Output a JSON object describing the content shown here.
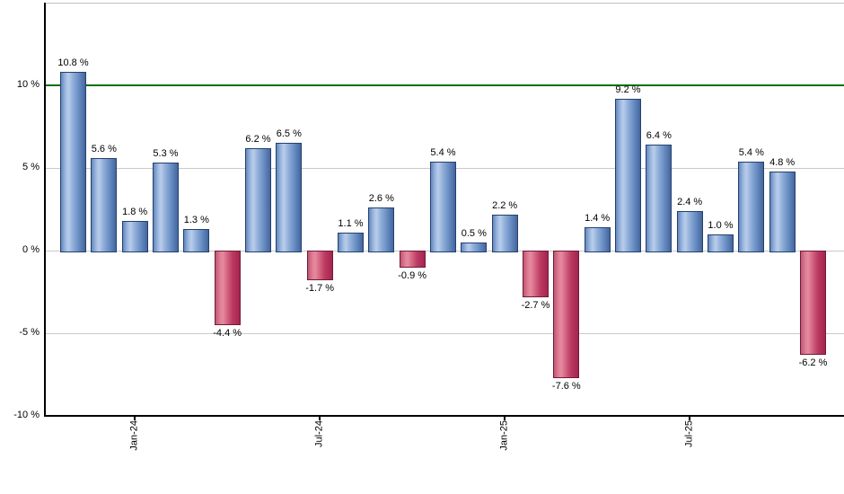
{
  "chart_data": {
    "type": "bar",
    "values": [
      10.8,
      5.6,
      1.8,
      5.3,
      1.3,
      -4.4,
      6.2,
      6.5,
      -1.7,
      1.1,
      2.6,
      -0.9,
      5.4,
      0.5,
      2.2,
      -2.7,
      -7.6,
      1.4,
      9.2,
      6.4,
      2.4,
      1.0,
      5.4,
      4.8,
      -6.2
    ],
    "bar_labels": [
      "10.8 %",
      "5.6 %",
      "1.8 %",
      "5.3 %",
      "1.3 %",
      "-4.4 %",
      "6.2 %",
      "6.5 %",
      "-1.7 %",
      "1.1 %",
      "2.6 %",
      "-0.9 %",
      "5.4 %",
      "0.5 %",
      "2.2 %",
      "-2.7 %",
      "-7.6 %",
      "1.4 %",
      "9.2 %",
      "6.4 %",
      "2.4 %",
      "1.0 %",
      "5.4 %",
      "4.8 %",
      "-6.2 %"
    ],
    "x_ticks": [
      {
        "bar_index": 2,
        "label": "Jan-24"
      },
      {
        "bar_index": 8,
        "label": "Jul-24"
      },
      {
        "bar_index": 14,
        "label": "Jan-25"
      },
      {
        "bar_index": 20,
        "label": "Jul-25"
      }
    ],
    "y_ticks": [
      {
        "value": 10,
        "label": "10 %"
      },
      {
        "value": 5,
        "label": "5 %"
      },
      {
        "value": 0,
        "label": "0 %"
      },
      {
        "value": -5,
        "label": "-5 %"
      },
      {
        "value": -10,
        "label": "-10 %"
      }
    ],
    "ylim": [
      -10,
      15
    ],
    "gridline_values": [
      5,
      0,
      -5
    ],
    "reference_line": {
      "value": 10,
      "color": "#007000"
    },
    "grid": true,
    "legend_position": "none",
    "colors": {
      "positive_bar_light": "#b9cdea",
      "positive_bar_dark": "#44669e",
      "positive_bar_border": "#24406e",
      "negative_bar_light": "#e68aa0",
      "negative_bar_dark": "#a52450",
      "negative_bar_border": "#701b38",
      "reference_line": "#007000",
      "gridline": "#c9c9c9",
      "axis": "#000000"
    }
  }
}
